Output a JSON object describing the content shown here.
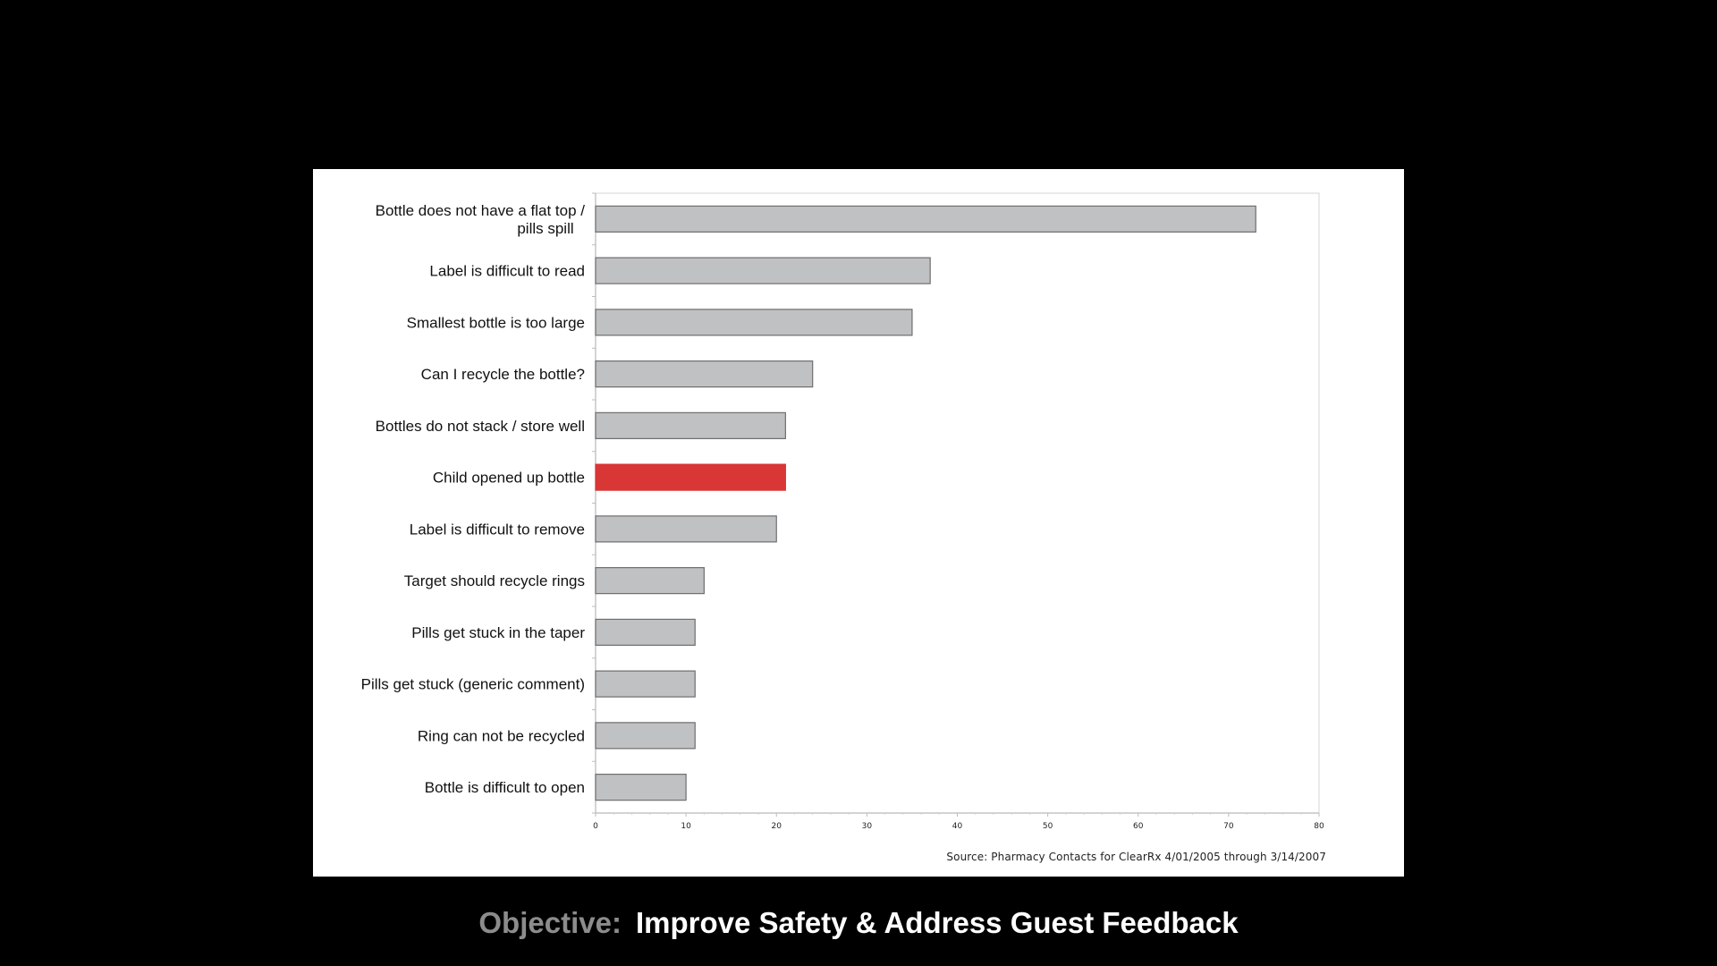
{
  "chart_data": {
    "type": "bar",
    "orientation": "horizontal",
    "categories": [
      "Bottle does not have a flat top / pills spill",
      "Label is difficult to read",
      "Smallest bottle is too large",
      "Can I recycle the bottle?",
      "Bottles do not stack / store well",
      "Child opened up bottle",
      "Label is difficult to remove",
      "Target should recycle rings",
      "Pills get stuck in the taper",
      "Pills get stuck (generic comment)",
      "Ring can not be recycled",
      "Bottle is difficult to open"
    ],
    "category_lines": [
      [
        "Bottle does not have a flat top /",
        "pills spill"
      ],
      [
        "Label is difficult to read"
      ],
      [
        "Smallest bottle is too large"
      ],
      [
        "Can I recycle the bottle?"
      ],
      [
        "Bottles do not stack / store well"
      ],
      [
        "Child opened up bottle"
      ],
      [
        "Label is difficult to remove"
      ],
      [
        "Target should recycle rings"
      ],
      [
        "Pills get stuck in the taper"
      ],
      [
        "Pills get stuck (generic comment)"
      ],
      [
        "Ring can not be recycled"
      ],
      [
        "Bottle is difficult to open"
      ]
    ],
    "values": [
      73,
      37,
      35,
      24,
      21,
      21,
      20,
      12,
      11,
      11,
      11,
      10
    ],
    "highlight_index": 5,
    "xlim": [
      0,
      80
    ],
    "xticks": [
      0,
      10,
      20,
      30,
      40,
      50,
      60,
      70,
      80
    ],
    "title": "",
    "xlabel": "",
    "ylabel": "",
    "grid": false,
    "legend": "none",
    "colors": {
      "bar": "#c0c1c3",
      "bar_stroke": "#6e6e6e",
      "highlight": "#d93636",
      "axis": "#bdbdbd"
    }
  },
  "source": "Source: Pharmacy Contacts for ClearRx 4/01/2005 through 3/14/2007",
  "caption": {
    "prefix": "Objective:",
    "text": "Improve Safety & Address Guest Feedback"
  }
}
